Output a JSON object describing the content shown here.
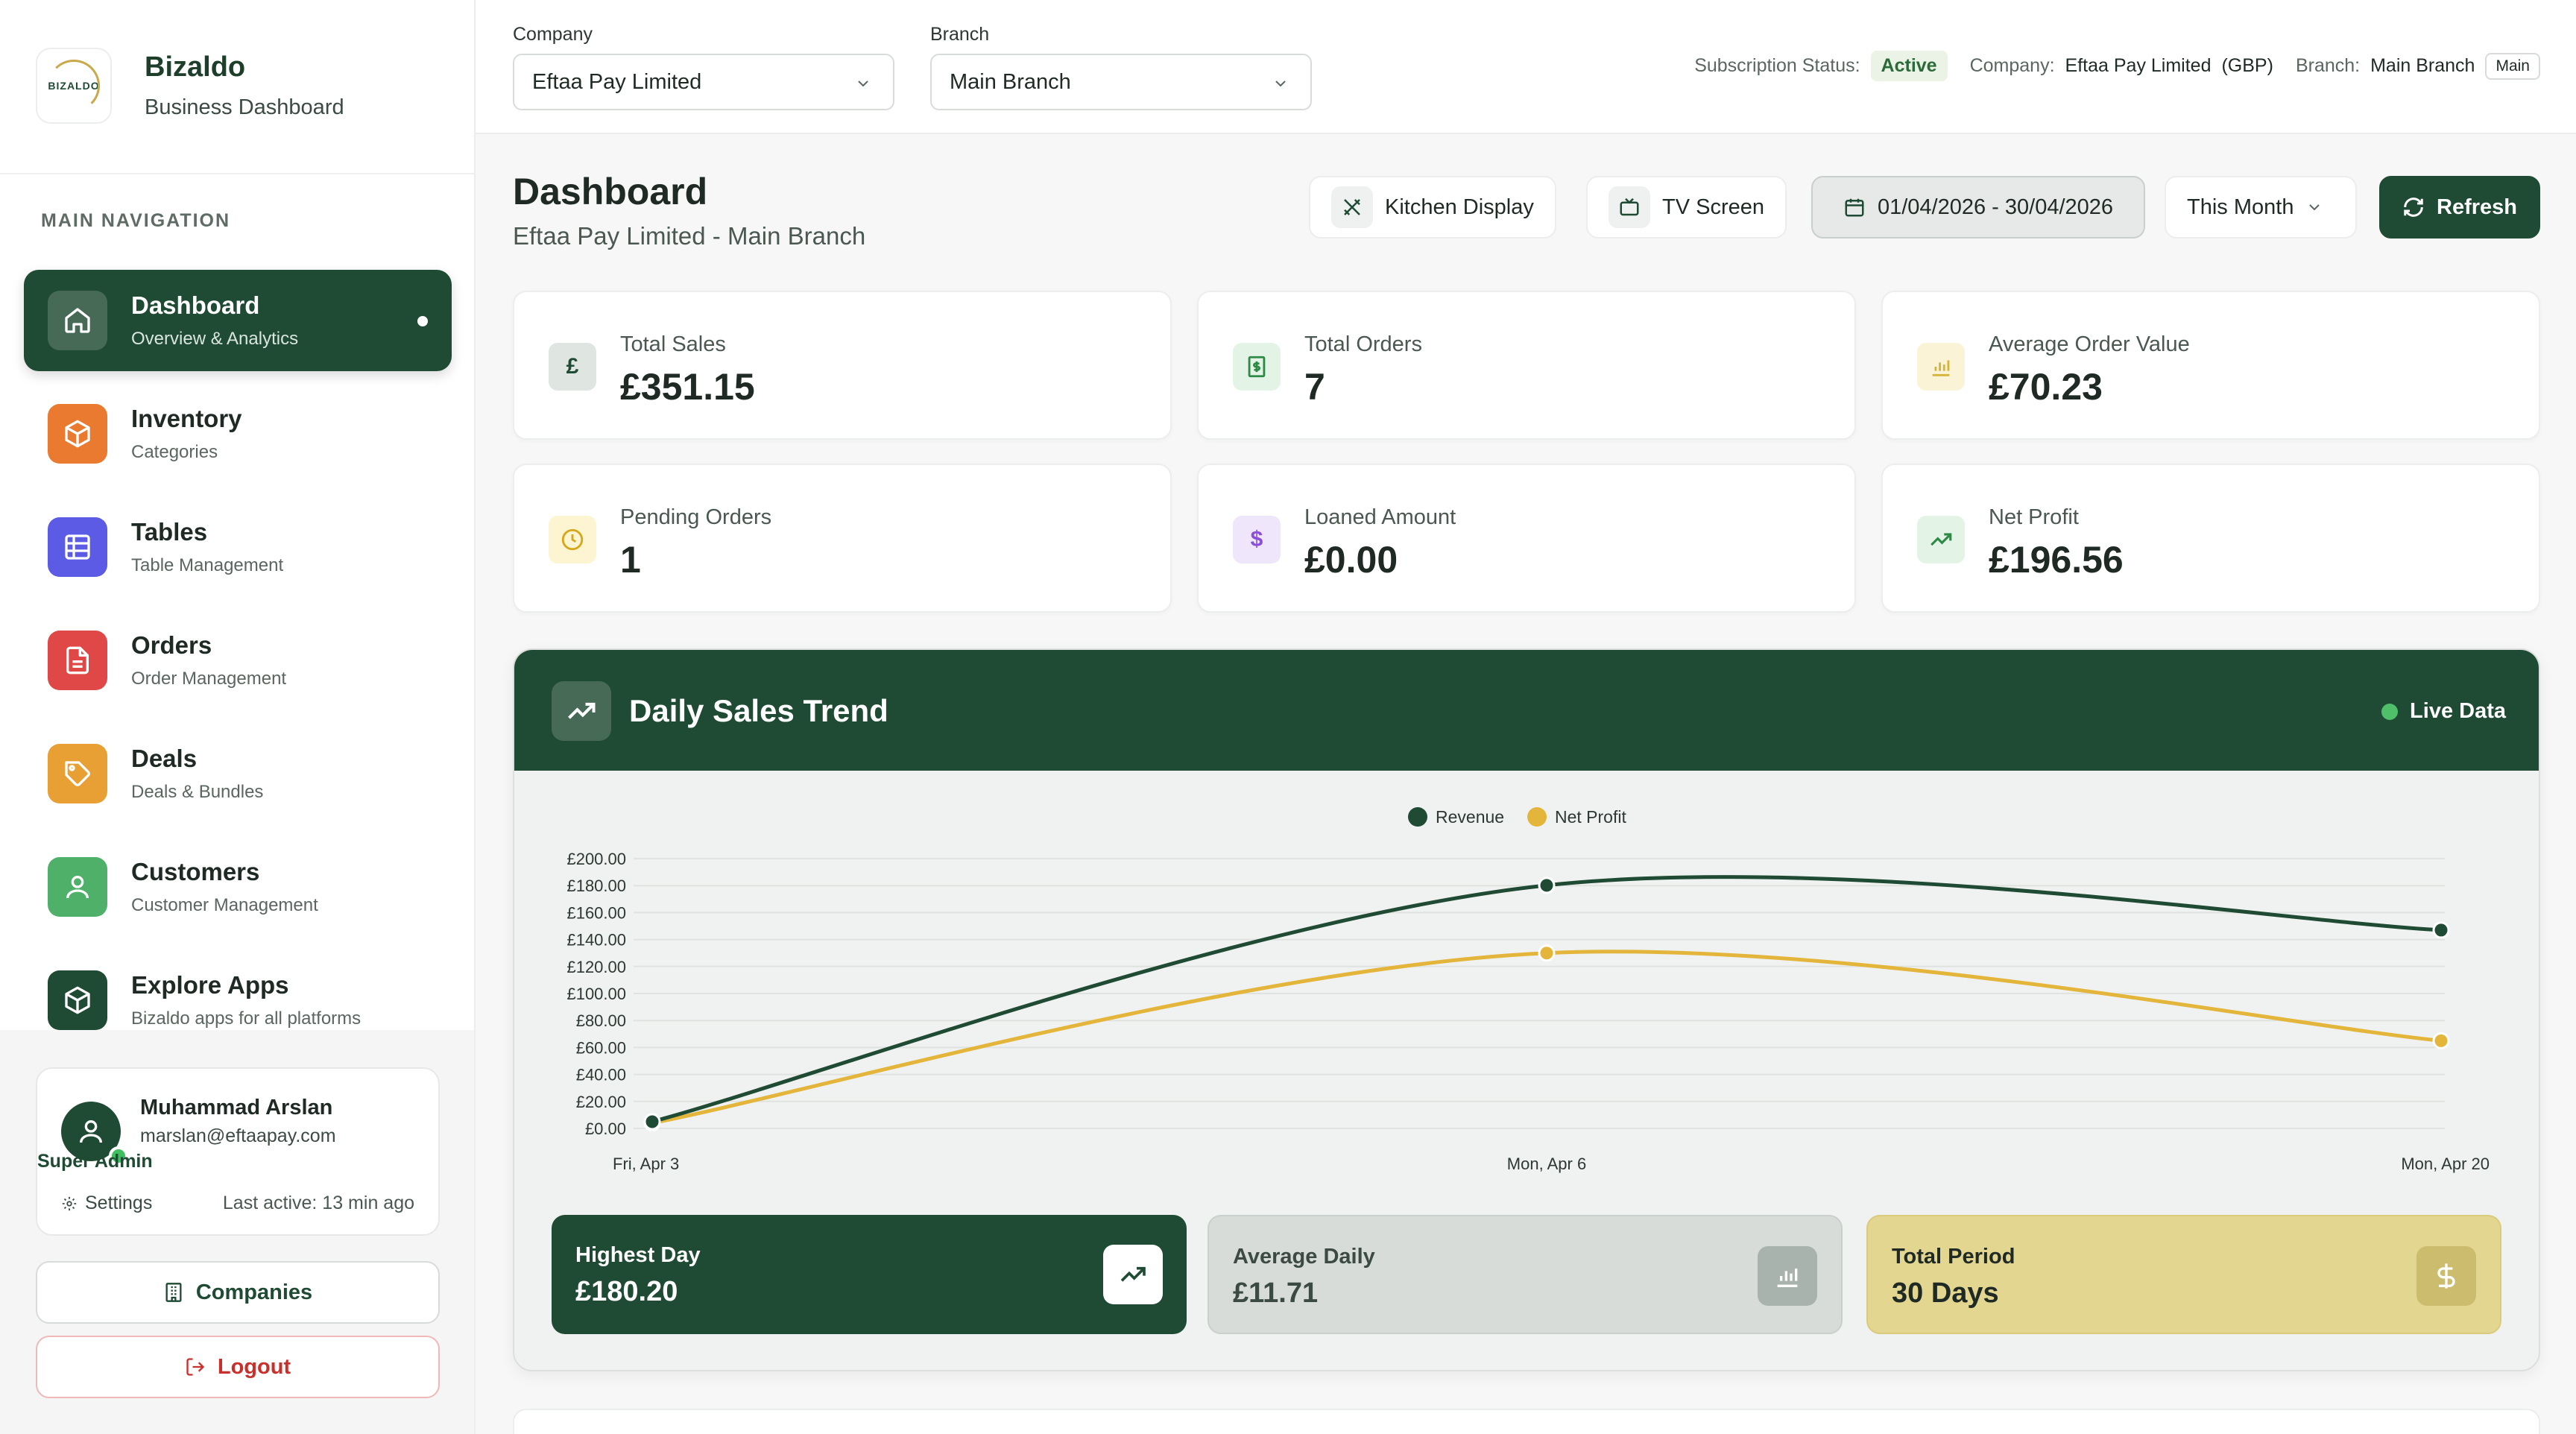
{
  "sidebar": {
    "brand": {
      "logo_text": "BIZALDO",
      "name": "Bizaldo",
      "subtitle": "Business Dashboard"
    },
    "nav_heading": "MAIN NAVIGATION",
    "items": [
      {
        "title": "Dashboard",
        "sub": "Overview & Analytics",
        "icon": "home-icon",
        "color": "#1f4a33"
      },
      {
        "title": "Inventory",
        "sub": "Categories",
        "icon": "box-icon",
        "color": "#ea7a2f"
      },
      {
        "title": "Tables",
        "sub": "Table Management",
        "icon": "grid-icon",
        "color": "#5b5be6"
      },
      {
        "title": "Orders",
        "sub": "Order Management",
        "icon": "document-icon",
        "color": "#e04848"
      },
      {
        "title": "Deals",
        "sub": "Deals & Bundles",
        "icon": "tag-icon",
        "color": "#e8a035"
      },
      {
        "title": "Customers",
        "sub": "Customer Management",
        "icon": "user-icon",
        "color": "#4fb06a"
      },
      {
        "title": "Explore Apps",
        "sub": "Bizaldo apps for all platforms",
        "icon": "cube-icon",
        "color": "#1f4a33"
      }
    ],
    "user": {
      "name": "Muhammad Arslan",
      "email": "marslan@eftaapay.com",
      "role": "Super Admin",
      "settings_label": "Settings",
      "last_active": "Last active: 13 min ago"
    },
    "companies_label": "Companies",
    "logout_label": "Logout"
  },
  "topbar": {
    "company_label": "Company",
    "company_value": "Eftaa Pay Limited",
    "branch_label": "Branch",
    "branch_value": "Main Branch",
    "subscription_label": "Subscription Status:",
    "subscription_value": "Active",
    "company_info_label": "Company:",
    "company_info_value": "Eftaa Pay Limited",
    "currency": "(GBP)",
    "branch_info_label": "Branch:",
    "branch_info_value": "Main Branch",
    "branch_badge": "Main"
  },
  "header": {
    "title": "Dashboard",
    "subtitle": "Eftaa Pay Limited - Main Branch",
    "kitchen_label": "Kitchen Display",
    "tv_label": "TV Screen",
    "date_range": "01/04/2026 - 30/04/2026",
    "period": "This Month",
    "refresh_label": "Refresh"
  },
  "stats": [
    {
      "label": "Total Sales",
      "value": "£351.15",
      "icon": "pound-icon",
      "symbol": "£",
      "bg": "#dfe5e1",
      "fg": "#1f4a33"
    },
    {
      "label": "Total Orders",
      "value": "7",
      "icon": "receipt-icon",
      "symbol": "",
      "bg": "#e3f3e6",
      "fg": "#2c8a45"
    },
    {
      "label": "Average Order Value",
      "value": "£70.23",
      "icon": "bar-chart-icon",
      "symbol": "",
      "bg": "#fbf3d6",
      "fg": "#d6b43a"
    },
    {
      "label": "Pending Orders",
      "value": "1",
      "icon": "clock-icon",
      "symbol": "",
      "bg": "#fdf5d2",
      "fg": "#d7a619"
    },
    {
      "label": "Loaned Amount",
      "value": "£0.00",
      "icon": "dollar-icon",
      "symbol": "$",
      "bg": "#efe6fb",
      "fg": "#8a4fd8"
    },
    {
      "label": "Net Profit",
      "value": "£196.56",
      "icon": "trending-up-icon",
      "symbol": "",
      "bg": "#e3f3e6",
      "fg": "#2c8a45"
    }
  ],
  "chart_panel": {
    "title": "Daily Sales Trend",
    "live_label": "Live Data"
  },
  "chart_data": {
    "type": "line",
    "x": [
      "Fri, Apr 3",
      "Mon, Apr 6",
      "Mon, Apr 20"
    ],
    "x_days": [
      3,
      6,
      20
    ],
    "series": [
      {
        "name": "Revenue",
        "values": [
          5,
          180.2,
          147
        ],
        "color": "#1f4a33"
      },
      {
        "name": "Net Profit",
        "values": [
          4,
          130,
          65
        ],
        "color": "#e3b53a"
      }
    ],
    "y_ticks": [
      "£0.00",
      "£20.00",
      "£40.00",
      "£60.00",
      "£80.00",
      "£100.00",
      "£120.00",
      "£140.00",
      "£160.00",
      "£180.00",
      "£200.00"
    ],
    "ylim": [
      0,
      200
    ],
    "grid": true,
    "legend": "top-center"
  },
  "summary": [
    {
      "label": "Highest Day",
      "value": "£180.20",
      "icon": "trending-up-icon"
    },
    {
      "label": "Average Daily",
      "value": "£11.71",
      "icon": "bar-chart-icon"
    },
    {
      "label": "Total Period",
      "value": "30 Days",
      "icon": "dollar-icon"
    }
  ]
}
